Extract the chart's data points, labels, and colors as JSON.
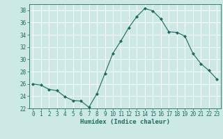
{
  "x": [
    0,
    1,
    2,
    3,
    4,
    5,
    6,
    7,
    8,
    9,
    10,
    11,
    12,
    13,
    14,
    15,
    16,
    17,
    18,
    19,
    20,
    21,
    22,
    23
  ],
  "y": [
    26.0,
    25.8,
    25.1,
    24.9,
    23.9,
    23.3,
    23.2,
    22.2,
    24.4,
    27.7,
    31.0,
    33.0,
    35.2,
    37.0,
    38.3,
    37.9,
    36.6,
    34.5,
    34.4,
    33.8,
    31.0,
    29.3,
    28.2,
    26.8
  ],
  "line_color": "#1a6b5e",
  "marker": "D",
  "marker_size": 2.0,
  "bg_color": "#cce9e5",
  "grid_color": "#ffffff",
  "xlabel": "Humidex (Indice chaleur)",
  "ylim": [
    22,
    39
  ],
  "xlim": [
    -0.5,
    23.5
  ],
  "yticks": [
    22,
    24,
    26,
    28,
    30,
    32,
    34,
    36,
    38
  ],
  "xticks": [
    0,
    1,
    2,
    3,
    4,
    5,
    6,
    7,
    8,
    9,
    10,
    11,
    12,
    13,
    14,
    15,
    16,
    17,
    18,
    19,
    20,
    21,
    22,
    23
  ],
  "label_fontsize": 6.5,
  "tick_fontsize": 5.5
}
